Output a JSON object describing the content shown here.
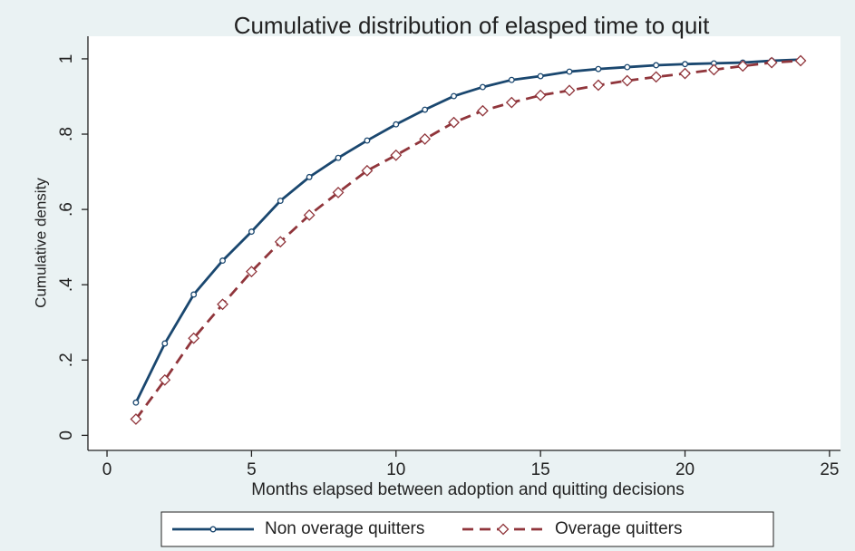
{
  "chart_data": {
    "type": "line",
    "title": "Cumulative distribution of elasped time to quit",
    "x_label": "Months elapsed between adoption and quitting decisions",
    "y_label": "Cumulative density",
    "x": [
      1,
      2,
      3,
      4,
      5,
      6,
      7,
      8,
      9,
      10,
      11,
      12,
      13,
      14,
      15,
      16,
      17,
      18,
      19,
      20,
      21,
      22,
      23,
      24
    ],
    "series": [
      {
        "name": "Non overage quitters",
        "color": "#1a476f",
        "dash": false,
        "marker": "circle",
        "values": [
          0.087,
          0.244,
          0.374,
          0.464,
          0.541,
          0.623,
          0.686,
          0.737,
          0.783,
          0.826,
          0.865,
          0.901,
          0.925,
          0.944,
          0.954,
          0.966,
          0.973,
          0.978,
          0.983,
          0.986,
          0.988,
          0.99,
          0.995,
          0.998
        ]
      },
      {
        "name": "Overage quitters",
        "color": "#90353b",
        "dash": true,
        "marker": "diamond",
        "values": [
          0.043,
          0.147,
          0.258,
          0.348,
          0.435,
          0.514,
          0.585,
          0.645,
          0.703,
          0.744,
          0.787,
          0.831,
          0.862,
          0.884,
          0.903,
          0.916,
          0.93,
          0.942,
          0.952,
          0.961,
          0.971,
          0.981,
          0.99,
          0.995
        ]
      }
    ],
    "xlim": [
      -0.66,
      25.38
    ],
    "ylim": [
      -0.04,
      1.06
    ],
    "xticks": [
      0,
      5,
      10,
      15,
      20,
      25
    ],
    "yticks": [
      0,
      {
        "value": 0.2,
        "label": ".2"
      },
      {
        "value": 0.4,
        "label": ".4"
      },
      {
        "value": 0.6,
        "label": ".6"
      },
      {
        "value": 0.8,
        "label": ".8"
      },
      1
    ],
    "grid": false,
    "legend_position": "bottom"
  }
}
